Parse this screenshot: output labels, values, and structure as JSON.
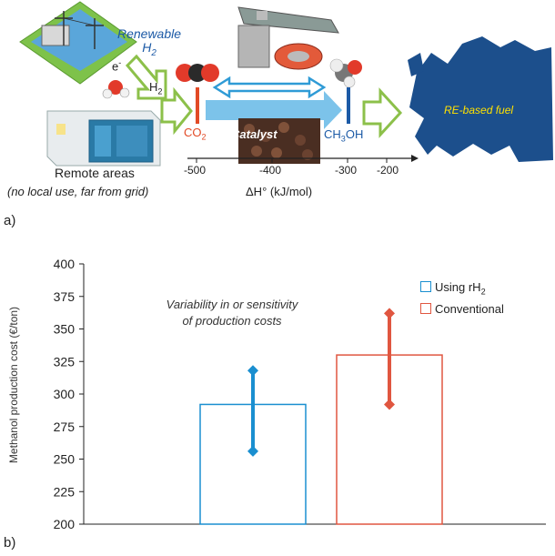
{
  "panel_a": {
    "label": "a)",
    "renewable_line1": "Renewable",
    "renewable_line2": "H",
    "renewable_sub": "2",
    "e_label": "e",
    "h2_label": "H",
    "h2_sub": "2",
    "co2_label": "CO",
    "co2_sub": "2",
    "catalyst_label": "Catalyst",
    "ch3oh_pre": "CH",
    "ch3oh_sub": "3",
    "ch3oh_post": "OH",
    "re_fuel_label": "RE-based fuel",
    "remote_title": "Remote areas",
    "remote_sub": "(no local use, far from grid)",
    "axis_label": "ΔH° (kJ/mol)",
    "axis_ticks": [
      "-500",
      "-400",
      "-300",
      "-200"
    ],
    "colors": {
      "co2": "#e24a26",
      "ch3oh": "#1c5aa6",
      "arrow_blue": "#2f9bd6",
      "arrow_green": "#8cc04a",
      "europe": "#1c4f8c"
    }
  },
  "panel_b": {
    "label": "b)"
  },
  "chart_data": {
    "type": "bar",
    "title": "",
    "xlabel": "",
    "ylabel": "Methanol production cost (€/ton)",
    "ylim": [
      200,
      400
    ],
    "yticks": [
      200,
      225,
      250,
      275,
      300,
      325,
      350,
      375,
      400
    ],
    "annotation_line1": "Variability in or sensitivity",
    "annotation_line2": "of production costs",
    "legend_position": "top-right",
    "series": [
      {
        "name": "Using rH",
        "name_sub": "2",
        "value": 292,
        "range": [
          256,
          318
        ],
        "color": "#1a8fd0"
      },
      {
        "name": "Conventional",
        "value": 330,
        "range": [
          292,
          362
        ],
        "color": "#e05640"
      }
    ]
  }
}
